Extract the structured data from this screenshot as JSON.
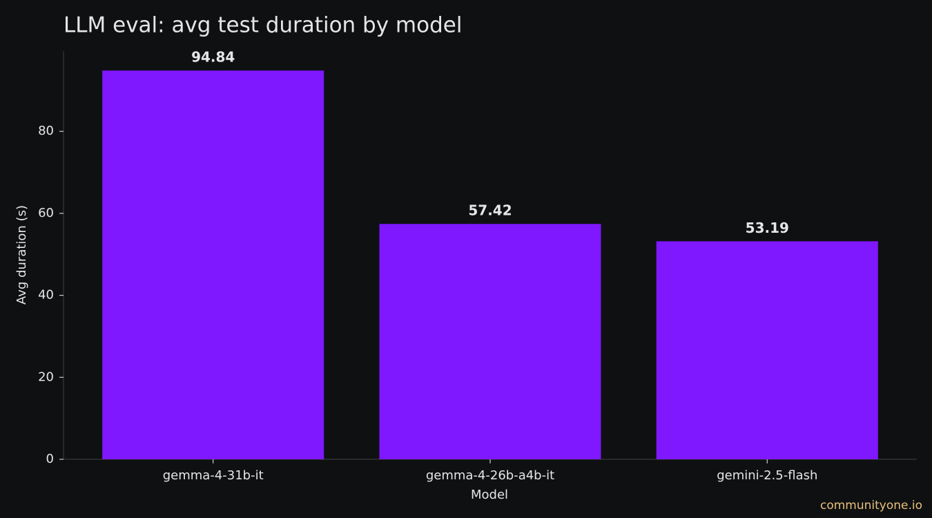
{
  "chart_data": {
    "type": "bar",
    "title": "LLM eval: avg test duration by model",
    "x_label": "Model",
    "y_label": "Avg duration (s)",
    "categories": [
      "gemma-4-31b-it",
      "gemma-4-26b-a4b-it",
      "gemini-2.5-flash"
    ],
    "values": [
      94.84,
      57.42,
      53.19
    ],
    "color": "#7f17ff",
    "ylim": [
      0,
      99.58
    ],
    "yticks": [
      0,
      20,
      40,
      60,
      80
    ],
    "grid": false,
    "watermark": "communityone.io"
  }
}
